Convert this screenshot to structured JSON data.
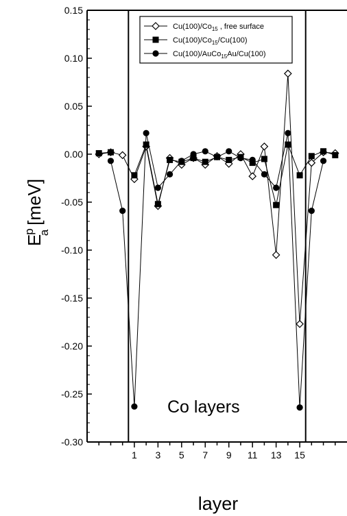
{
  "chart_data": {
    "type": "line",
    "x": [
      -2,
      -1,
      0,
      1,
      2,
      3,
      4,
      5,
      6,
      7,
      8,
      9,
      10,
      11,
      12,
      13,
      14,
      15,
      16,
      17,
      18
    ],
    "xlabel": "layer",
    "xticks": [
      1,
      3,
      5,
      7,
      9,
      11,
      13,
      15
    ],
    "xlim": [
      -3,
      19
    ],
    "ylabel": {
      "main": "E",
      "superscript": "p",
      "subscript": "a",
      "unit": "[meV]"
    },
    "ylim": [
      -0.3,
      0.15
    ],
    "yticks": [
      "-0.30",
      "-0.25",
      "-0.20",
      "-0.15",
      "-0.10",
      "-0.05",
      "0.00",
      "0.05",
      "0.10",
      "0.15"
    ],
    "legend_position": "top-right",
    "annotation": "Co layers",
    "boundary_lines_x": [
      0.5,
      15.5
    ],
    "series": [
      {
        "name": "Cu(100)/Co15 , free surface",
        "legend": {
          "pre": "Cu(100)/Co",
          "sub": "15",
          "post": " , free surface"
        },
        "marker": "diamond-open",
        "values": [
          0.0,
          0.002,
          -0.001,
          -0.026,
          0.008,
          -0.054,
          -0.004,
          -0.011,
          -0.004,
          -0.011,
          -0.002,
          -0.01,
          0.0,
          -0.023,
          0.008,
          -0.105,
          0.084,
          -0.177,
          -0.009,
          0.002,
          0.001
        ]
      },
      {
        "name": "Cu(100)/Co15/Cu(100)",
        "legend": {
          "pre": "Cu(100)/Co",
          "sub": "15",
          "post": "/Cu(100)"
        },
        "marker": "square-filled",
        "values": [
          0.001,
          0.002,
          null,
          -0.022,
          0.01,
          -0.052,
          -0.006,
          -0.008,
          -0.004,
          -0.008,
          -0.003,
          -0.006,
          -0.003,
          -0.009,
          -0.005,
          -0.053,
          0.01,
          -0.022,
          -0.002,
          0.003,
          -0.001
        ]
      },
      {
        "name": "Cu(100)/AuCo15Au/Cu(100)",
        "legend": {
          "pre": "Cu(100)/AuCo",
          "sub": "15",
          "post": "Au/Cu(100)"
        },
        "marker": "circle-filled",
        "values": [
          null,
          -0.007,
          -0.059,
          -0.263,
          0.022,
          -0.035,
          -0.021,
          -0.007,
          0.0,
          0.003,
          -0.003,
          0.003,
          -0.004,
          -0.006,
          -0.021,
          -0.035,
          0.022,
          -0.264,
          -0.059,
          -0.007,
          null
        ]
      }
    ]
  }
}
